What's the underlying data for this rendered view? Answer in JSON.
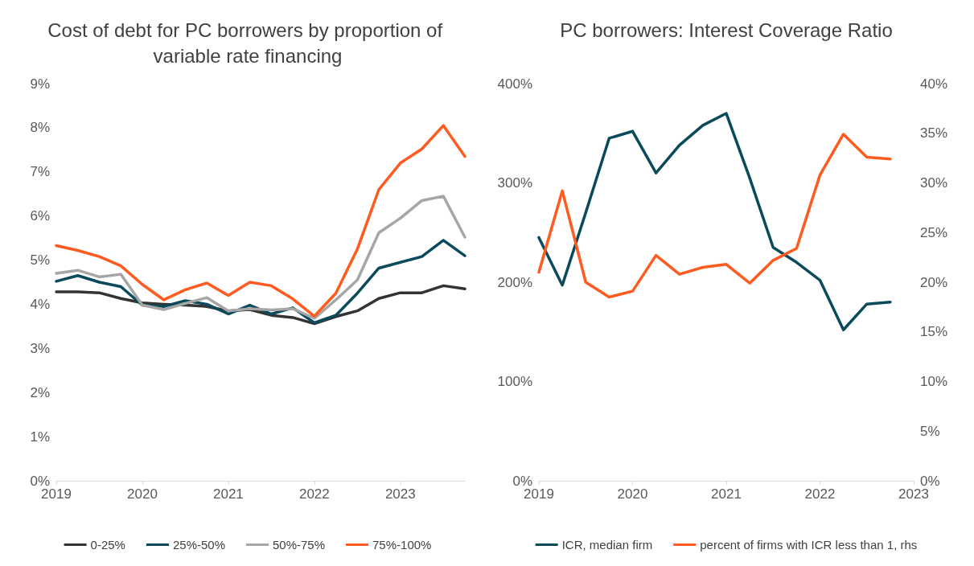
{
  "chart_data": [
    {
      "type": "line",
      "title": "Cost of debt for PC borrowers by proportion of variable rate financing",
      "x": [
        2019,
        2019.25,
        2019.5,
        2019.75,
        2020,
        2020.25,
        2020.5,
        2020.75,
        2021,
        2021.25,
        2021.5,
        2021.75,
        2022,
        2022.25,
        2022.5,
        2022.75,
        2023,
        2023.25,
        2023.5,
        2023.75
      ],
      "series": [
        {
          "name": "0-25%",
          "color": "#333333",
          "values": [
            4.28,
            4.28,
            4.26,
            4.13,
            4.03,
            4.0,
            3.98,
            3.95,
            3.85,
            3.88,
            3.75,
            3.7,
            3.56,
            3.72,
            3.85,
            4.13,
            4.26,
            4.26,
            4.42,
            4.35
          ]
        },
        {
          "name": "25%-50%",
          "color": "#0b4a5c",
          "values": [
            4.52,
            4.65,
            4.5,
            4.4,
            3.98,
            3.95,
            4.08,
            4.0,
            3.78,
            3.98,
            3.78,
            3.92,
            3.58,
            3.75,
            4.25,
            4.82,
            4.95,
            5.08,
            5.45,
            5.1
          ]
        },
        {
          "name": "50%-75%",
          "color": "#a6a6a6",
          "values": [
            4.7,
            4.77,
            4.62,
            4.68,
            3.98,
            3.88,
            4.02,
            4.15,
            3.85,
            3.9,
            3.87,
            3.9,
            3.68,
            4.1,
            4.55,
            5.62,
            5.95,
            6.35,
            6.45,
            5.52
          ]
        },
        {
          "name": "75%-100%",
          "color": "#ff5a1f",
          "values": [
            5.33,
            5.22,
            5.08,
            4.87,
            4.45,
            4.1,
            4.33,
            4.48,
            4.2,
            4.5,
            4.42,
            4.12,
            3.73,
            4.25,
            5.25,
            6.6,
            7.2,
            7.52,
            8.05,
            7.35
          ]
        }
      ],
      "xlim": [
        2019,
        2023.75
      ],
      "xticks": [
        2019,
        2020,
        2021,
        2022,
        2023
      ],
      "ylim": [
        0,
        9
      ],
      "yticks": [
        {
          "value": 0,
          "label": "0%"
        },
        {
          "value": 1,
          "label": "1%"
        },
        {
          "value": 2,
          "label": "2%"
        },
        {
          "value": 3,
          "label": "3%"
        },
        {
          "value": 4,
          "label": "4%"
        },
        {
          "value": 5,
          "label": "5%"
        },
        {
          "value": 6,
          "label": "6%"
        },
        {
          "value": 7,
          "label": "7%"
        },
        {
          "value": 8,
          "label": "8%"
        },
        {
          "value": 9,
          "label": "9%"
        }
      ],
      "grid": false,
      "legend": "bottom",
      "marker": "none",
      "line_style": "solid"
    },
    {
      "type": "line",
      "title": "PC borrowers: Interest Coverage Ratio",
      "x": [
        2019,
        2019.25,
        2019.5,
        2019.75,
        2020,
        2020.25,
        2020.5,
        2020.75,
        2021,
        2021.25,
        2021.5,
        2021.75,
        2022,
        2022.25,
        2022.5,
        2022.75
      ],
      "series": [
        {
          "name": "ICR, median firm",
          "color": "#0b4a5c",
          "values": [
            245,
            197,
            270,
            345,
            352,
            310,
            338,
            358,
            370,
            305,
            235,
            220,
            202,
            152,
            178,
            180
          ]
        },
        {
          "name": "percent of firms with ICR less than 1, rhs",
          "color": "#ff5a1f",
          "axis": "y2",
          "values": [
            21,
            29.2,
            20,
            18.5,
            19.1,
            22.7,
            20.8,
            21.5,
            21.8,
            19.9,
            22.2,
            23.4,
            30.8,
            34.9,
            32.6,
            32.4
          ]
        }
      ],
      "xlim": [
        2019,
        2023
      ],
      "xticks": [
        2019,
        2020,
        2021,
        2022,
        2023
      ],
      "ylim": [
        0,
        400
      ],
      "yticks": [
        {
          "value": 0,
          "label": "0%"
        },
        {
          "value": 100,
          "label": "100%"
        },
        {
          "value": 200,
          "label": "200%"
        },
        {
          "value": 300,
          "label": "300%"
        },
        {
          "value": 400,
          "label": "400%"
        }
      ],
      "y2lim": [
        0,
        40
      ],
      "y2ticks": [
        {
          "value": 0,
          "label": "0%"
        },
        {
          "value": 5,
          "label": "5%"
        },
        {
          "value": 10,
          "label": "10%"
        },
        {
          "value": 15,
          "label": "15%"
        },
        {
          "value": 20,
          "label": "20%"
        },
        {
          "value": 25,
          "label": "25%"
        },
        {
          "value": 30,
          "label": "30%"
        },
        {
          "value": 35,
          "label": "35%"
        },
        {
          "value": 40,
          "label": "40%"
        }
      ],
      "grid": false,
      "legend": "bottom",
      "marker": "none",
      "line_style": "solid"
    }
  ]
}
